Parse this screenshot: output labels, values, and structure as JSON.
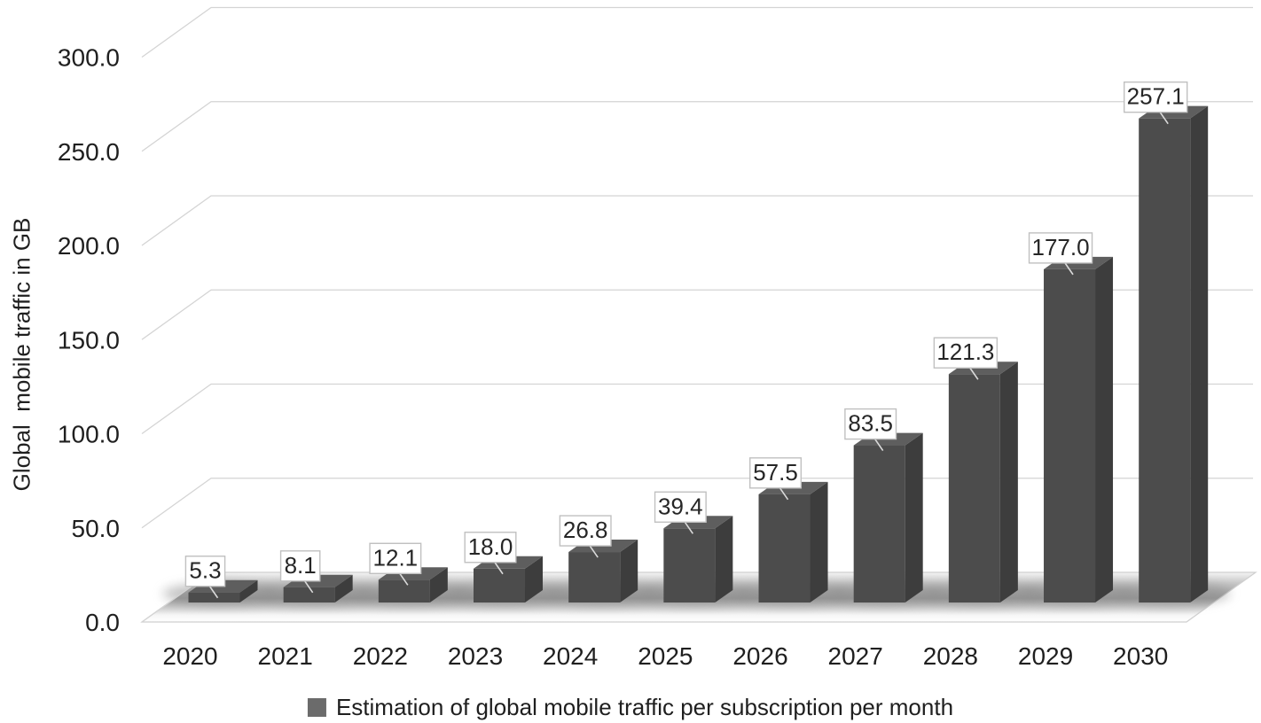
{
  "chart_data": {
    "type": "bar",
    "variant": "3d-column",
    "title": "",
    "categories": [
      "2020",
      "2021",
      "2022",
      "2023",
      "2024",
      "2025",
      "2026",
      "2027",
      "2028",
      "2029",
      "2030"
    ],
    "values": [
      5.3,
      8.1,
      12.1,
      18.0,
      26.8,
      39.4,
      57.5,
      83.5,
      121.3,
      177.0,
      257.1
    ],
    "value_labels": [
      "5.3",
      "8.1",
      "12.1",
      "18.0",
      "26.8",
      "39.4",
      "57.5",
      "83.5",
      "121.3",
      "177.0",
      "257.1"
    ],
    "legend": "Estimation of global mobile traffic per subscription per month",
    "legend_position": "bottom",
    "ylabel": "Global  mobile traffic in GB",
    "xlabel": "",
    "ylim": [
      0,
      300
    ],
    "ytick_interval": 50,
    "ytick_labels": [
      "0.0",
      "50.0",
      "100.0",
      "150.0",
      "200.0",
      "250.0",
      "300.0"
    ],
    "grid": true,
    "colors": {
      "bar_front": "#4c4c4c",
      "bar_side": "#3d3d3d",
      "bar_top": "#5e5e5e",
      "gridline": "#d4d4d4",
      "floor_edge": "#cfcfcf",
      "floor_shadow": "#8f8f8f",
      "label_box_fill": "#ffffff",
      "label_box_border": "#c0c0c0",
      "leader": "#dadada",
      "text": "#1f1f1f",
      "legend_swatch": "#6b6b6b"
    }
  }
}
